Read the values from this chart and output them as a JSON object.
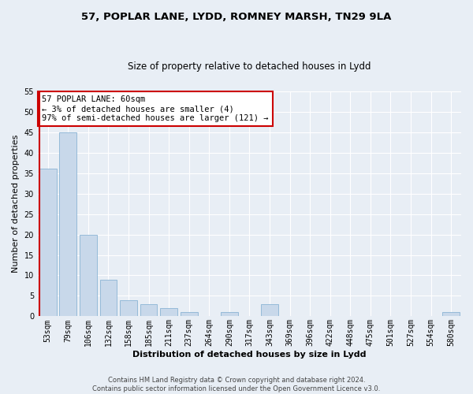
{
  "title1": "57, POPLAR LANE, LYDD, ROMNEY MARSH, TN29 9LA",
  "title2": "Size of property relative to detached houses in Lydd",
  "xlabel": "Distribution of detached houses by size in Lydd",
  "ylabel": "Number of detached properties",
  "categories": [
    "53sqm",
    "79sqm",
    "106sqm",
    "132sqm",
    "158sqm",
    "185sqm",
    "211sqm",
    "237sqm",
    "264sqm",
    "290sqm",
    "317sqm",
    "343sqm",
    "369sqm",
    "396sqm",
    "422sqm",
    "448sqm",
    "475sqm",
    "501sqm",
    "527sqm",
    "554sqm",
    "580sqm"
  ],
  "values": [
    36,
    45,
    20,
    9,
    4,
    3,
    2,
    1,
    0,
    1,
    0,
    3,
    0,
    0,
    0,
    0,
    0,
    0,
    0,
    0,
    1
  ],
  "bar_color": "#c8d8ea",
  "bar_edge_color": "#8ab4d4",
  "highlight_bar_color": "#cc0000",
  "ylim": [
    0,
    55
  ],
  "yticks": [
    0,
    5,
    10,
    15,
    20,
    25,
    30,
    35,
    40,
    45,
    50,
    55
  ],
  "annotation_line1": "57 POPLAR LANE: 60sqm",
  "annotation_line2": "← 3% of detached houses are smaller (4)",
  "annotation_line3": "97% of semi-detached houses are larger (121) →",
  "annotation_box_color": "#ffffff",
  "annotation_box_edge_color": "#cc0000",
  "footer_text": "Contains HM Land Registry data © Crown copyright and database right 2024.\nContains public sector information licensed under the Open Government Licence v3.0.",
  "bg_color": "#e8eef5",
  "plot_bg_color": "#e8eef5",
  "grid_color": "#ffffff",
  "title1_fontsize": 9.5,
  "title2_fontsize": 8.5,
  "xlabel_fontsize": 8,
  "ylabel_fontsize": 8,
  "tick_fontsize": 7,
  "annotation_fontsize": 7.5,
  "footer_fontsize": 6
}
